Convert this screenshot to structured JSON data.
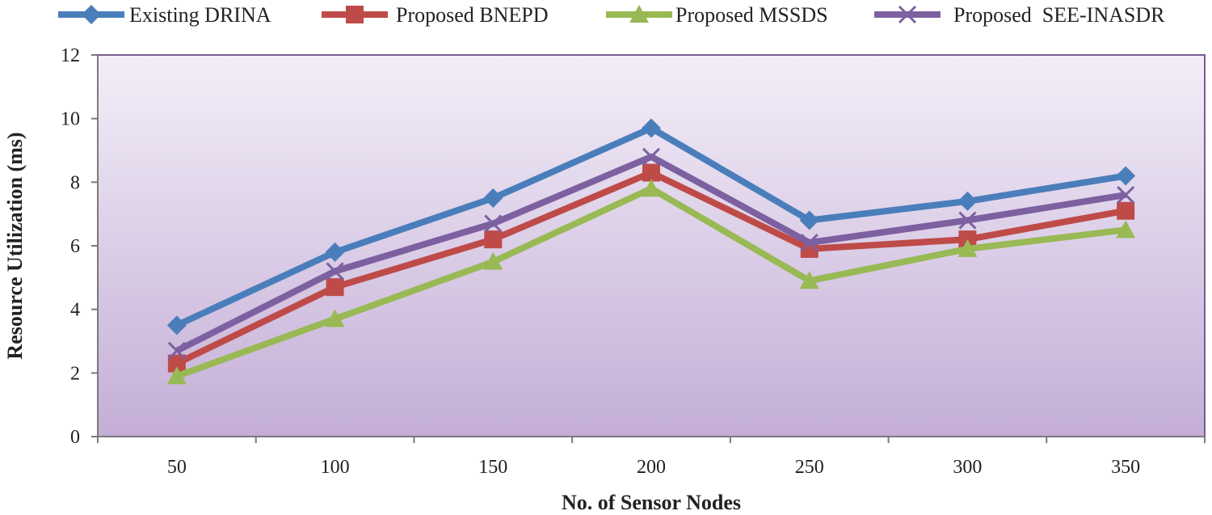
{
  "chart_data": {
    "type": "line",
    "title": "",
    "xlabel": "No. of Sensor Nodes",
    "ylabel": "Resource Utilization (ms)",
    "categories": [
      "50",
      "100",
      "150",
      "200",
      "250",
      "300",
      "350"
    ],
    "ylim": [
      0,
      12
    ],
    "yticks": [
      0,
      2,
      4,
      6,
      8,
      10,
      12
    ],
    "grid": false,
    "legend_position": "top",
    "series": [
      {
        "name": "Existing DRINA",
        "marker": "diamond",
        "color": "#4a7ebb",
        "values": [
          3.5,
          5.8,
          7.5,
          9.7,
          6.8,
          7.4,
          8.2
        ]
      },
      {
        "name": "Proposed BNEPD",
        "marker": "square",
        "color": "#be4b48",
        "values": [
          2.3,
          4.7,
          6.2,
          8.3,
          5.9,
          6.2,
          7.1
        ]
      },
      {
        "name": "Proposed MSSDS",
        "marker": "triangle",
        "color": "#98b954",
        "values": [
          1.9,
          3.7,
          5.5,
          7.8,
          4.9,
          5.9,
          6.5
        ]
      },
      {
        "name": "Proposed  SEE-INASDR",
        "marker": "x",
        "color": "#7d60a0",
        "values": [
          2.7,
          5.2,
          6.7,
          8.8,
          6.1,
          6.8,
          7.6
        ]
      }
    ]
  }
}
